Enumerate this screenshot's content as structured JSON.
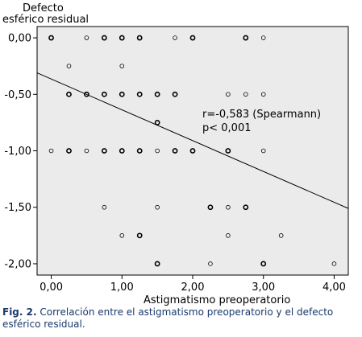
{
  "chart_data": {
    "type": "scatter",
    "ylabel_line1": "Defecto",
    "ylabel_line2": "esférico residual",
    "xlabel": "Astigmatismo preoperatorio",
    "xlim": [
      -0.2,
      4.2
    ],
    "ylim": [
      -2.1,
      0.1
    ],
    "x_ticks": [
      0,
      1,
      2,
      3,
      4
    ],
    "x_tick_labels": [
      "0,00",
      "1,00",
      "2,00",
      "3,00",
      "4,00"
    ],
    "y_ticks": [
      0,
      -0.5,
      -1,
      -1.5,
      -2
    ],
    "y_tick_labels": [
      "0,00",
      "-0,50",
      "-1,00",
      "-1,50",
      "-2,00"
    ],
    "annotation_line1": "r=-0,583 (Spearmann)",
    "annotation_line2": "p< 0,001",
    "regression_line": {
      "x": [
        -0.2,
        4.2
      ],
      "y": [
        -0.31,
        -1.51
      ]
    },
    "points": [
      {
        "x": 0,
        "y": 0,
        "bold": true
      },
      {
        "x": 0.5,
        "y": 0,
        "bold": false
      },
      {
        "x": 0.75,
        "y": 0,
        "bold": true
      },
      {
        "x": 1,
        "y": 0,
        "bold": true
      },
      {
        "x": 1.25,
        "y": 0,
        "bold": true
      },
      {
        "x": 1.75,
        "y": 0,
        "bold": false
      },
      {
        "x": 2,
        "y": 0,
        "bold": true
      },
      {
        "x": 2.75,
        "y": 0,
        "bold": true
      },
      {
        "x": 3,
        "y": 0,
        "bold": false
      },
      {
        "x": 0.25,
        "y": -0.25,
        "bold": false
      },
      {
        "x": 1,
        "y": -0.25,
        "bold": false
      },
      {
        "x": 0.25,
        "y": -0.5,
        "bold": true
      },
      {
        "x": 0.5,
        "y": -0.5,
        "bold": true
      },
      {
        "x": 0.75,
        "y": -0.5,
        "bold": true
      },
      {
        "x": 1,
        "y": -0.5,
        "bold": true
      },
      {
        "x": 1.25,
        "y": -0.5,
        "bold": true
      },
      {
        "x": 1.5,
        "y": -0.5,
        "bold": true
      },
      {
        "x": 1.75,
        "y": -0.5,
        "bold": true
      },
      {
        "x": 2.5,
        "y": -0.5,
        "bold": false
      },
      {
        "x": 2.75,
        "y": -0.5,
        "bold": false
      },
      {
        "x": 3,
        "y": -0.5,
        "bold": false
      },
      {
        "x": 1.5,
        "y": -0.75,
        "bold": true
      },
      {
        "x": 0,
        "y": -1,
        "bold": false
      },
      {
        "x": 0.25,
        "y": -1,
        "bold": true
      },
      {
        "x": 0.5,
        "y": -1,
        "bold": false
      },
      {
        "x": 0.75,
        "y": -1,
        "bold": true
      },
      {
        "x": 1,
        "y": -1,
        "bold": true
      },
      {
        "x": 1.25,
        "y": -1,
        "bold": true
      },
      {
        "x": 1.5,
        "y": -1,
        "bold": false
      },
      {
        "x": 1.75,
        "y": -1,
        "bold": true
      },
      {
        "x": 2,
        "y": -1,
        "bold": true
      },
      {
        "x": 2.5,
        "y": -1,
        "bold": true
      },
      {
        "x": 3,
        "y": -1,
        "bold": false
      },
      {
        "x": 0.75,
        "y": -1.5,
        "bold": false
      },
      {
        "x": 1.5,
        "y": -1.5,
        "bold": false
      },
      {
        "x": 2.25,
        "y": -1.5,
        "bold": true
      },
      {
        "x": 2.5,
        "y": -1.5,
        "bold": false
      },
      {
        "x": 2.75,
        "y": -1.5,
        "bold": true
      },
      {
        "x": 1,
        "y": -1.75,
        "bold": false
      },
      {
        "x": 1.25,
        "y": -1.75,
        "bold": true
      },
      {
        "x": 2.5,
        "y": -1.75,
        "bold": false
      },
      {
        "x": 3.25,
        "y": -1.75,
        "bold": false
      },
      {
        "x": 1.5,
        "y": -2,
        "bold": true
      },
      {
        "x": 2.25,
        "y": -2,
        "bold": false
      },
      {
        "x": 3,
        "y": -2,
        "bold": true
      },
      {
        "x": 4,
        "y": -2,
        "bold": false
      }
    ]
  },
  "caption": {
    "label": "Fig. 2.",
    "text": " Correlación entre el astigmatismo preoperatorio y el defecto esférico residual."
  }
}
